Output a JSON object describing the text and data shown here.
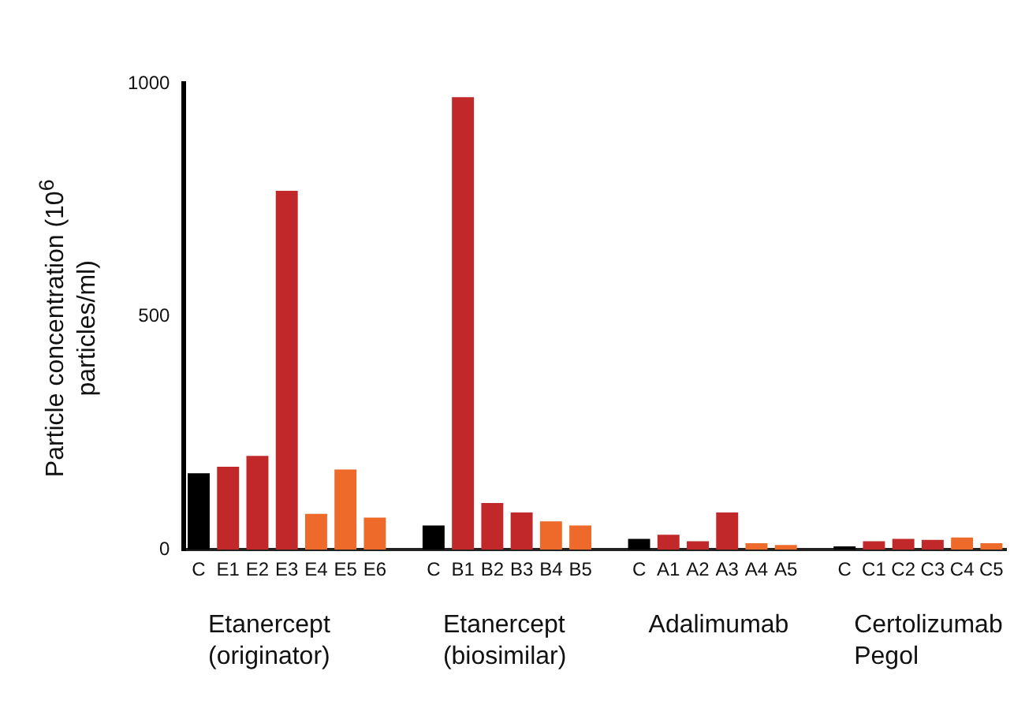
{
  "chart_data": {
    "type": "bar",
    "ylabel": "Particle concentration (10$^{6}$ particles/ml)",
    "categories": [
      "C",
      "E1",
      "E2",
      "E3",
      "E4",
      "E5",
      "E6",
      null,
      "C",
      "B1",
      "B2",
      "B3",
      "B4",
      "B5",
      null,
      "C",
      "A1",
      "A2",
      "A3",
      "A4",
      "A5",
      null,
      "C",
      "C1",
      "C2",
      "C3",
      "C4",
      "C5"
    ],
    "values": [
      164,
      178,
      201,
      770,
      77,
      172,
      69,
      null,
      52,
      971,
      100,
      80,
      61,
      52,
      null,
      23,
      32,
      18,
      80,
      14,
      10,
      null,
      7,
      18,
      23,
      21,
      26,
      14
    ],
    "colors": [
      "#000000",
      "#c0282a",
      "#c0282a",
      "#c0282a",
      "#ee6a2a",
      "#ee6a2a",
      "#ee6a2a",
      "#ffffff",
      "#000000",
      "#c0282a",
      "#c0282a",
      "#c0282a",
      "#ee6a2a",
      "#ee6a2a",
      "#ffffff",
      "#000000",
      "#c0282a",
      "#c0282a",
      "#c0282a",
      "#ee6a2a",
      "#ee6a2a",
      "#ffffff",
      "#000000",
      "#c0282a",
      "#c0282a",
      "#c0282a",
      "#ee6a2a",
      "#ee6a2a"
    ],
    "ylim": [
      0,
      1000
    ],
    "yticks": [
      0,
      500,
      1000
    ],
    "grid": false,
    "legend": false,
    "annotations": [
      "Etanercept (originator)",
      "Etanercept (biosimilar)",
      "Adalimumab",
      "Certolizumab Pegol"
    ]
  }
}
